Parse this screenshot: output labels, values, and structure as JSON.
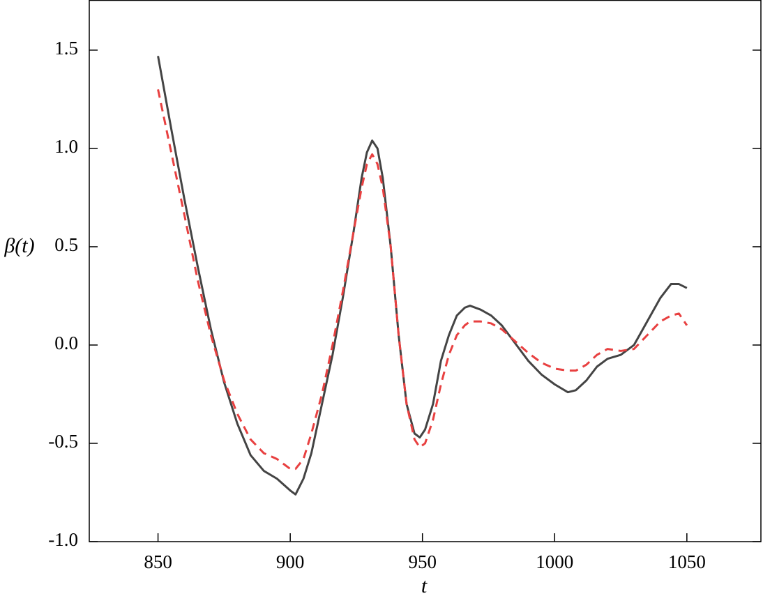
{
  "chart_data": {
    "type": "line",
    "xlabel": "t",
    "ylabel": "β(t)",
    "x": [
      850,
      855,
      860,
      865,
      870,
      875,
      880,
      885,
      890,
      895,
      900,
      902,
      905,
      908,
      912,
      916,
      920,
      924,
      927,
      929,
      931,
      933,
      935,
      938,
      941,
      944,
      947,
      949,
      951,
      954,
      957,
      960,
      963,
      966,
      968,
      972,
      976,
      980,
      985,
      990,
      995,
      1000,
      1005,
      1008,
      1012,
      1016,
      1020,
      1025,
      1030,
      1035,
      1040,
      1044,
      1047,
      1050
    ],
    "series": [
      {
        "color": "#444444",
        "dash": "solid",
        "values": [
          1.47,
          1.1,
          0.74,
          0.4,
          0.08,
          -0.19,
          -0.4,
          -0.56,
          -0.64,
          -0.68,
          -0.74,
          -0.76,
          -0.68,
          -0.55,
          -0.3,
          -0.05,
          0.25,
          0.58,
          0.85,
          0.98,
          1.04,
          1.0,
          0.85,
          0.5,
          0.05,
          -0.3,
          -0.45,
          -0.47,
          -0.43,
          -0.3,
          -0.08,
          0.05,
          0.15,
          0.19,
          0.2,
          0.18,
          0.15,
          0.1,
          0.01,
          -0.08,
          -0.15,
          -0.2,
          -0.24,
          -0.23,
          -0.18,
          -0.11,
          -0.07,
          -0.05,
          0.0,
          0.12,
          0.24,
          0.31,
          0.31,
          0.29
        ]
      },
      {
        "color": "#e84040",
        "dash": "dashed",
        "values": [
          1.3,
          0.98,
          0.66,
          0.33,
          0.05,
          -0.18,
          -0.35,
          -0.48,
          -0.55,
          -0.58,
          -0.63,
          -0.63,
          -0.58,
          -0.45,
          -0.25,
          0.0,
          0.28,
          0.58,
          0.8,
          0.92,
          0.97,
          0.92,
          0.8,
          0.5,
          0.05,
          -0.3,
          -0.48,
          -0.52,
          -0.5,
          -0.38,
          -0.2,
          -0.05,
          0.05,
          0.1,
          0.12,
          0.12,
          0.11,
          0.08,
          0.02,
          -0.04,
          -0.09,
          -0.12,
          -0.13,
          -0.13,
          -0.1,
          -0.05,
          -0.02,
          -0.03,
          -0.02,
          0.05,
          0.12,
          0.15,
          0.16,
          0.1
        ]
      }
    ],
    "xlim": [
      824,
      1078
    ],
    "xticks": [
      850,
      900,
      950,
      1000,
      1050
    ],
    "ylim": [
      -1.0,
      1.755
    ],
    "yticks": [
      {
        "value": -1.0,
        "label": "-1.0"
      },
      -0.5,
      {
        "value": 0.0,
        "label": "0.0"
      },
      0.5,
      {
        "value": 1.0,
        "label": "1.0"
      },
      1.5
    ]
  }
}
